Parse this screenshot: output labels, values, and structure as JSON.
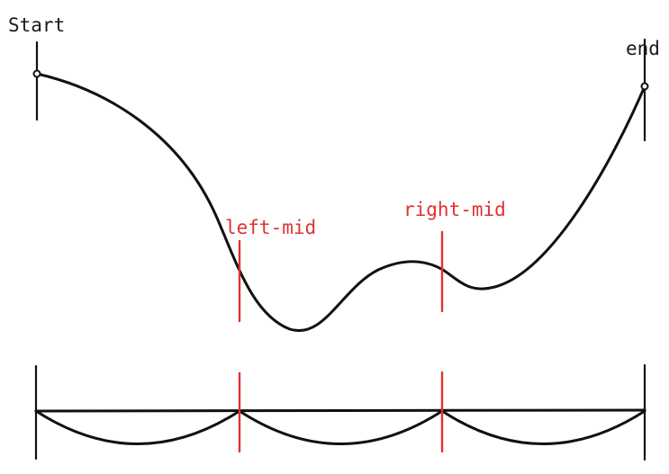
{
  "labels": {
    "start": "Start",
    "end": "end",
    "left_mid": "left-mid",
    "right_mid": "right-mid"
  },
  "colors": {
    "ink": "#111111",
    "marker": "#e03131"
  }
}
